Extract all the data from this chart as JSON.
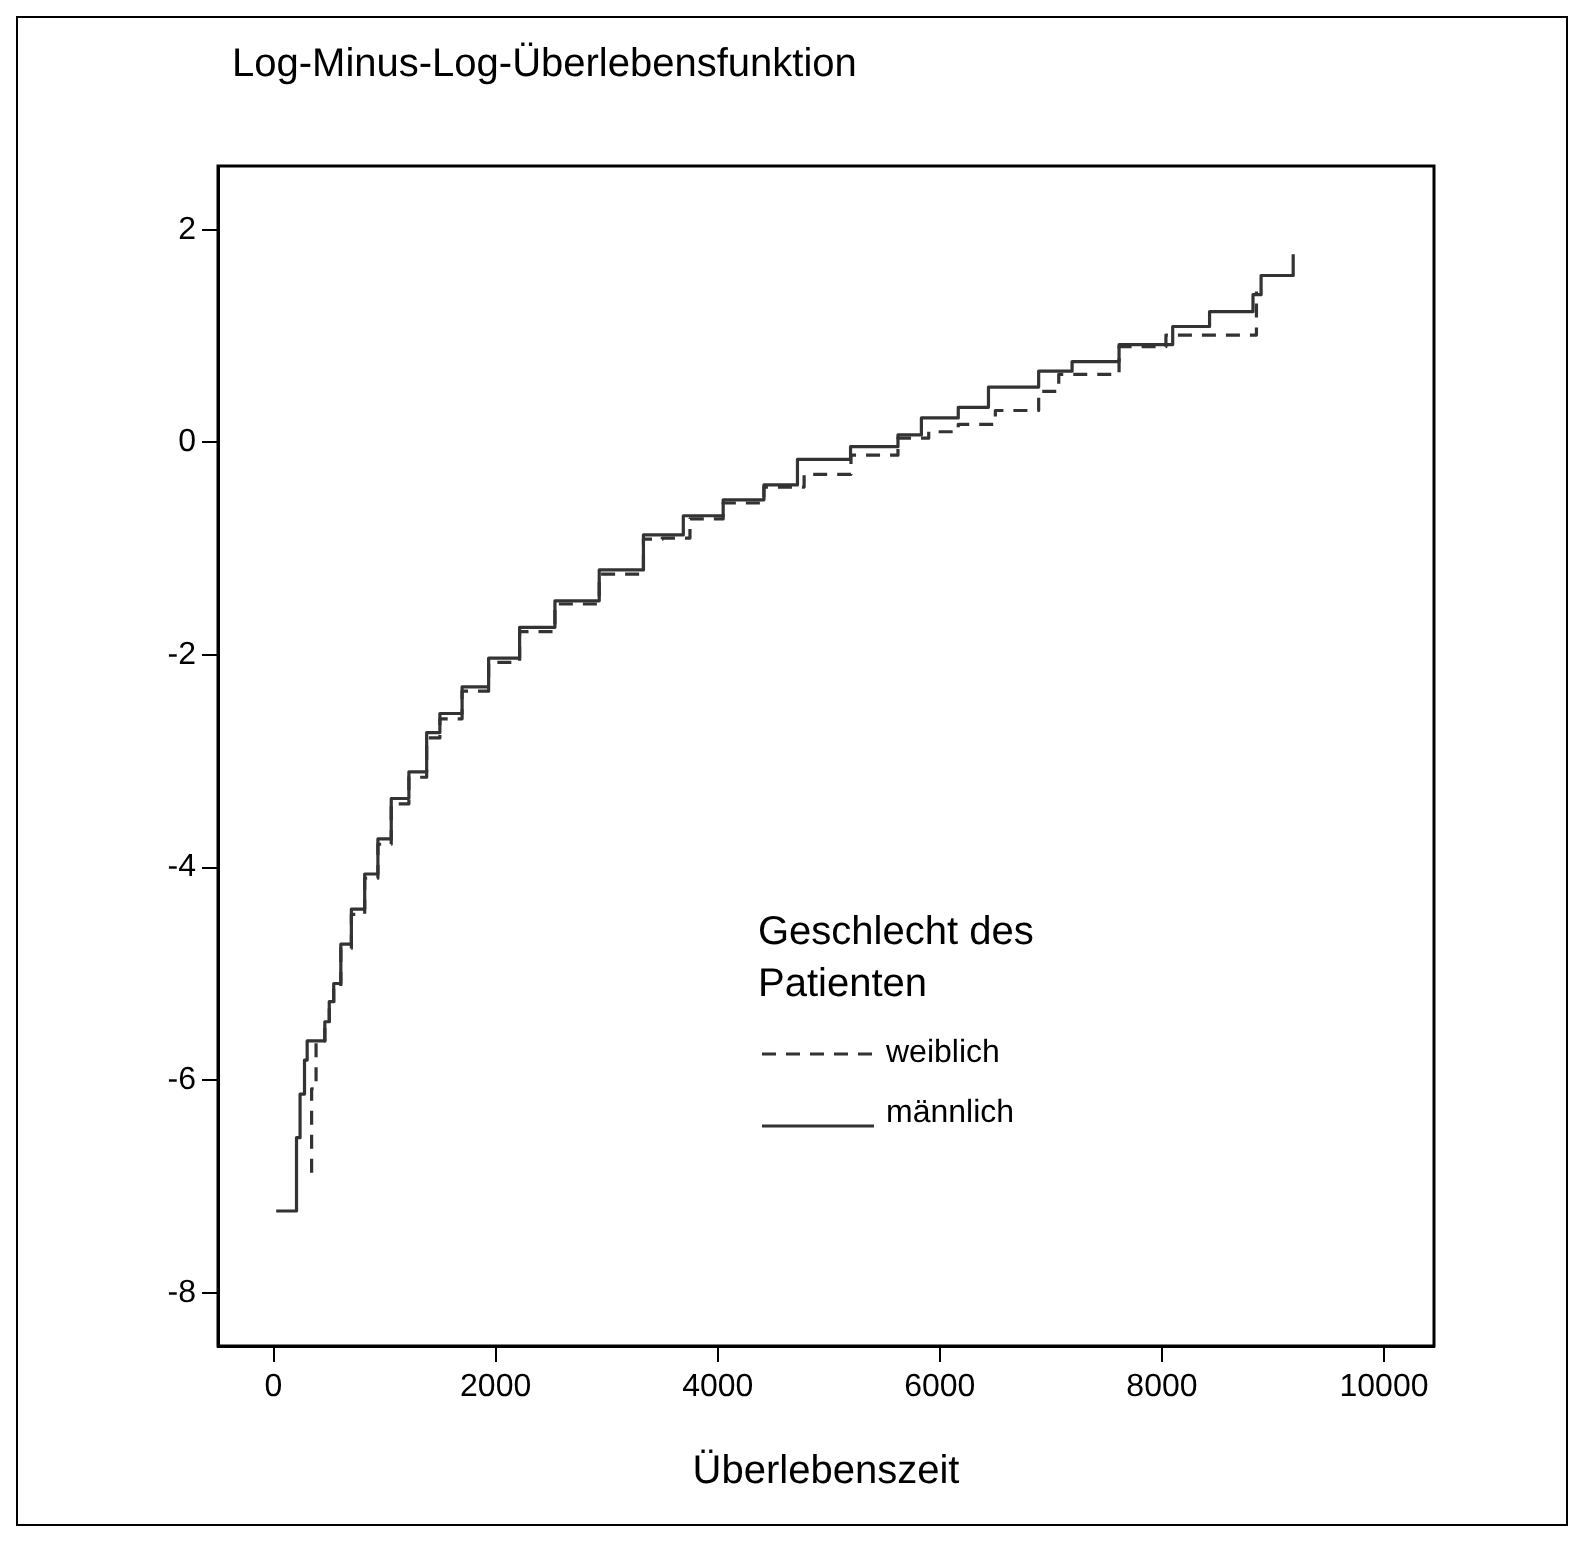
{
  "chart_data": {
    "type": "step",
    "title": "Log-Minus-Log-Überlebensfunktion",
    "xlabel": "Überlebenszeit",
    "legend_title": "Geschlecht des Patienten",
    "legend": "bottom right",
    "grid": false,
    "xlim": [
      -500,
      10450
    ],
    "xticks": [
      0,
      2000,
      4000,
      6000,
      8000,
      10000
    ],
    "ylim": [
      -8.5,
      2.6
    ],
    "yticks": [
      -8,
      -6,
      -4,
      -2,
      0,
      2
    ],
    "series": [
      {
        "name": "weiblich",
        "color": "#333333",
        "line_style": "dashed",
        "x": [
          343,
          343,
          383,
          462,
          502,
          542,
          606,
          701,
          821,
          940,
          1060,
          1219,
          1379,
          1498,
          1698,
          1937,
          2216,
          2534,
          2933,
          3331,
          3500,
          3750,
          4049,
          4416,
          4778,
          5200,
          5623,
          5900,
          6166,
          6500,
          6890,
          7071,
          7614,
          8036,
          8851,
          8851
        ],
        "values": [
          -6.87,
          -6.08,
          -5.63,
          -5.47,
          -5.3,
          -5.12,
          -4.76,
          -4.44,
          -4.1,
          -3.78,
          -3.4,
          -3.15,
          -2.78,
          -2.6,
          -2.34,
          -2.07,
          -1.78,
          -1.52,
          -1.24,
          -0.91,
          -0.9,
          -0.72,
          -0.57,
          -0.42,
          -0.3,
          -0.12,
          0.04,
          0.1,
          0.17,
          0.3,
          0.48,
          0.64,
          0.9,
          1.01,
          1.01,
          1.42
        ]
      },
      {
        "name": "männlich",
        "color": "#333333",
        "line_style": "solid",
        "x": [
          24,
          207,
          239,
          279,
          303,
          462,
          502,
          542,
          606,
          701,
          821,
          940,
          1060,
          1219,
          1379,
          1498,
          1698,
          1937,
          2216,
          2534,
          2933,
          3331,
          3690,
          4049,
          4416,
          4718,
          5196,
          5623,
          5834,
          6166,
          6438,
          6890,
          7191,
          7614,
          8097,
          8429,
          8820,
          8893,
          9182,
          9182
        ],
        "values": [
          -7.23,
          -6.54,
          -6.13,
          -5.81,
          -5.63,
          -5.45,
          -5.26,
          -5.09,
          -4.72,
          -4.39,
          -4.06,
          -3.73,
          -3.35,
          -3.1,
          -2.73,
          -2.55,
          -2.3,
          -2.03,
          -1.74,
          -1.49,
          -1.2,
          -0.87,
          -0.69,
          -0.54,
          -0.4,
          -0.16,
          -0.04,
          0.07,
          0.23,
          0.33,
          0.52,
          0.67,
          0.76,
          0.92,
          1.09,
          1.23,
          1.39,
          1.57,
          1.57,
          1.77
        ]
      }
    ]
  }
}
